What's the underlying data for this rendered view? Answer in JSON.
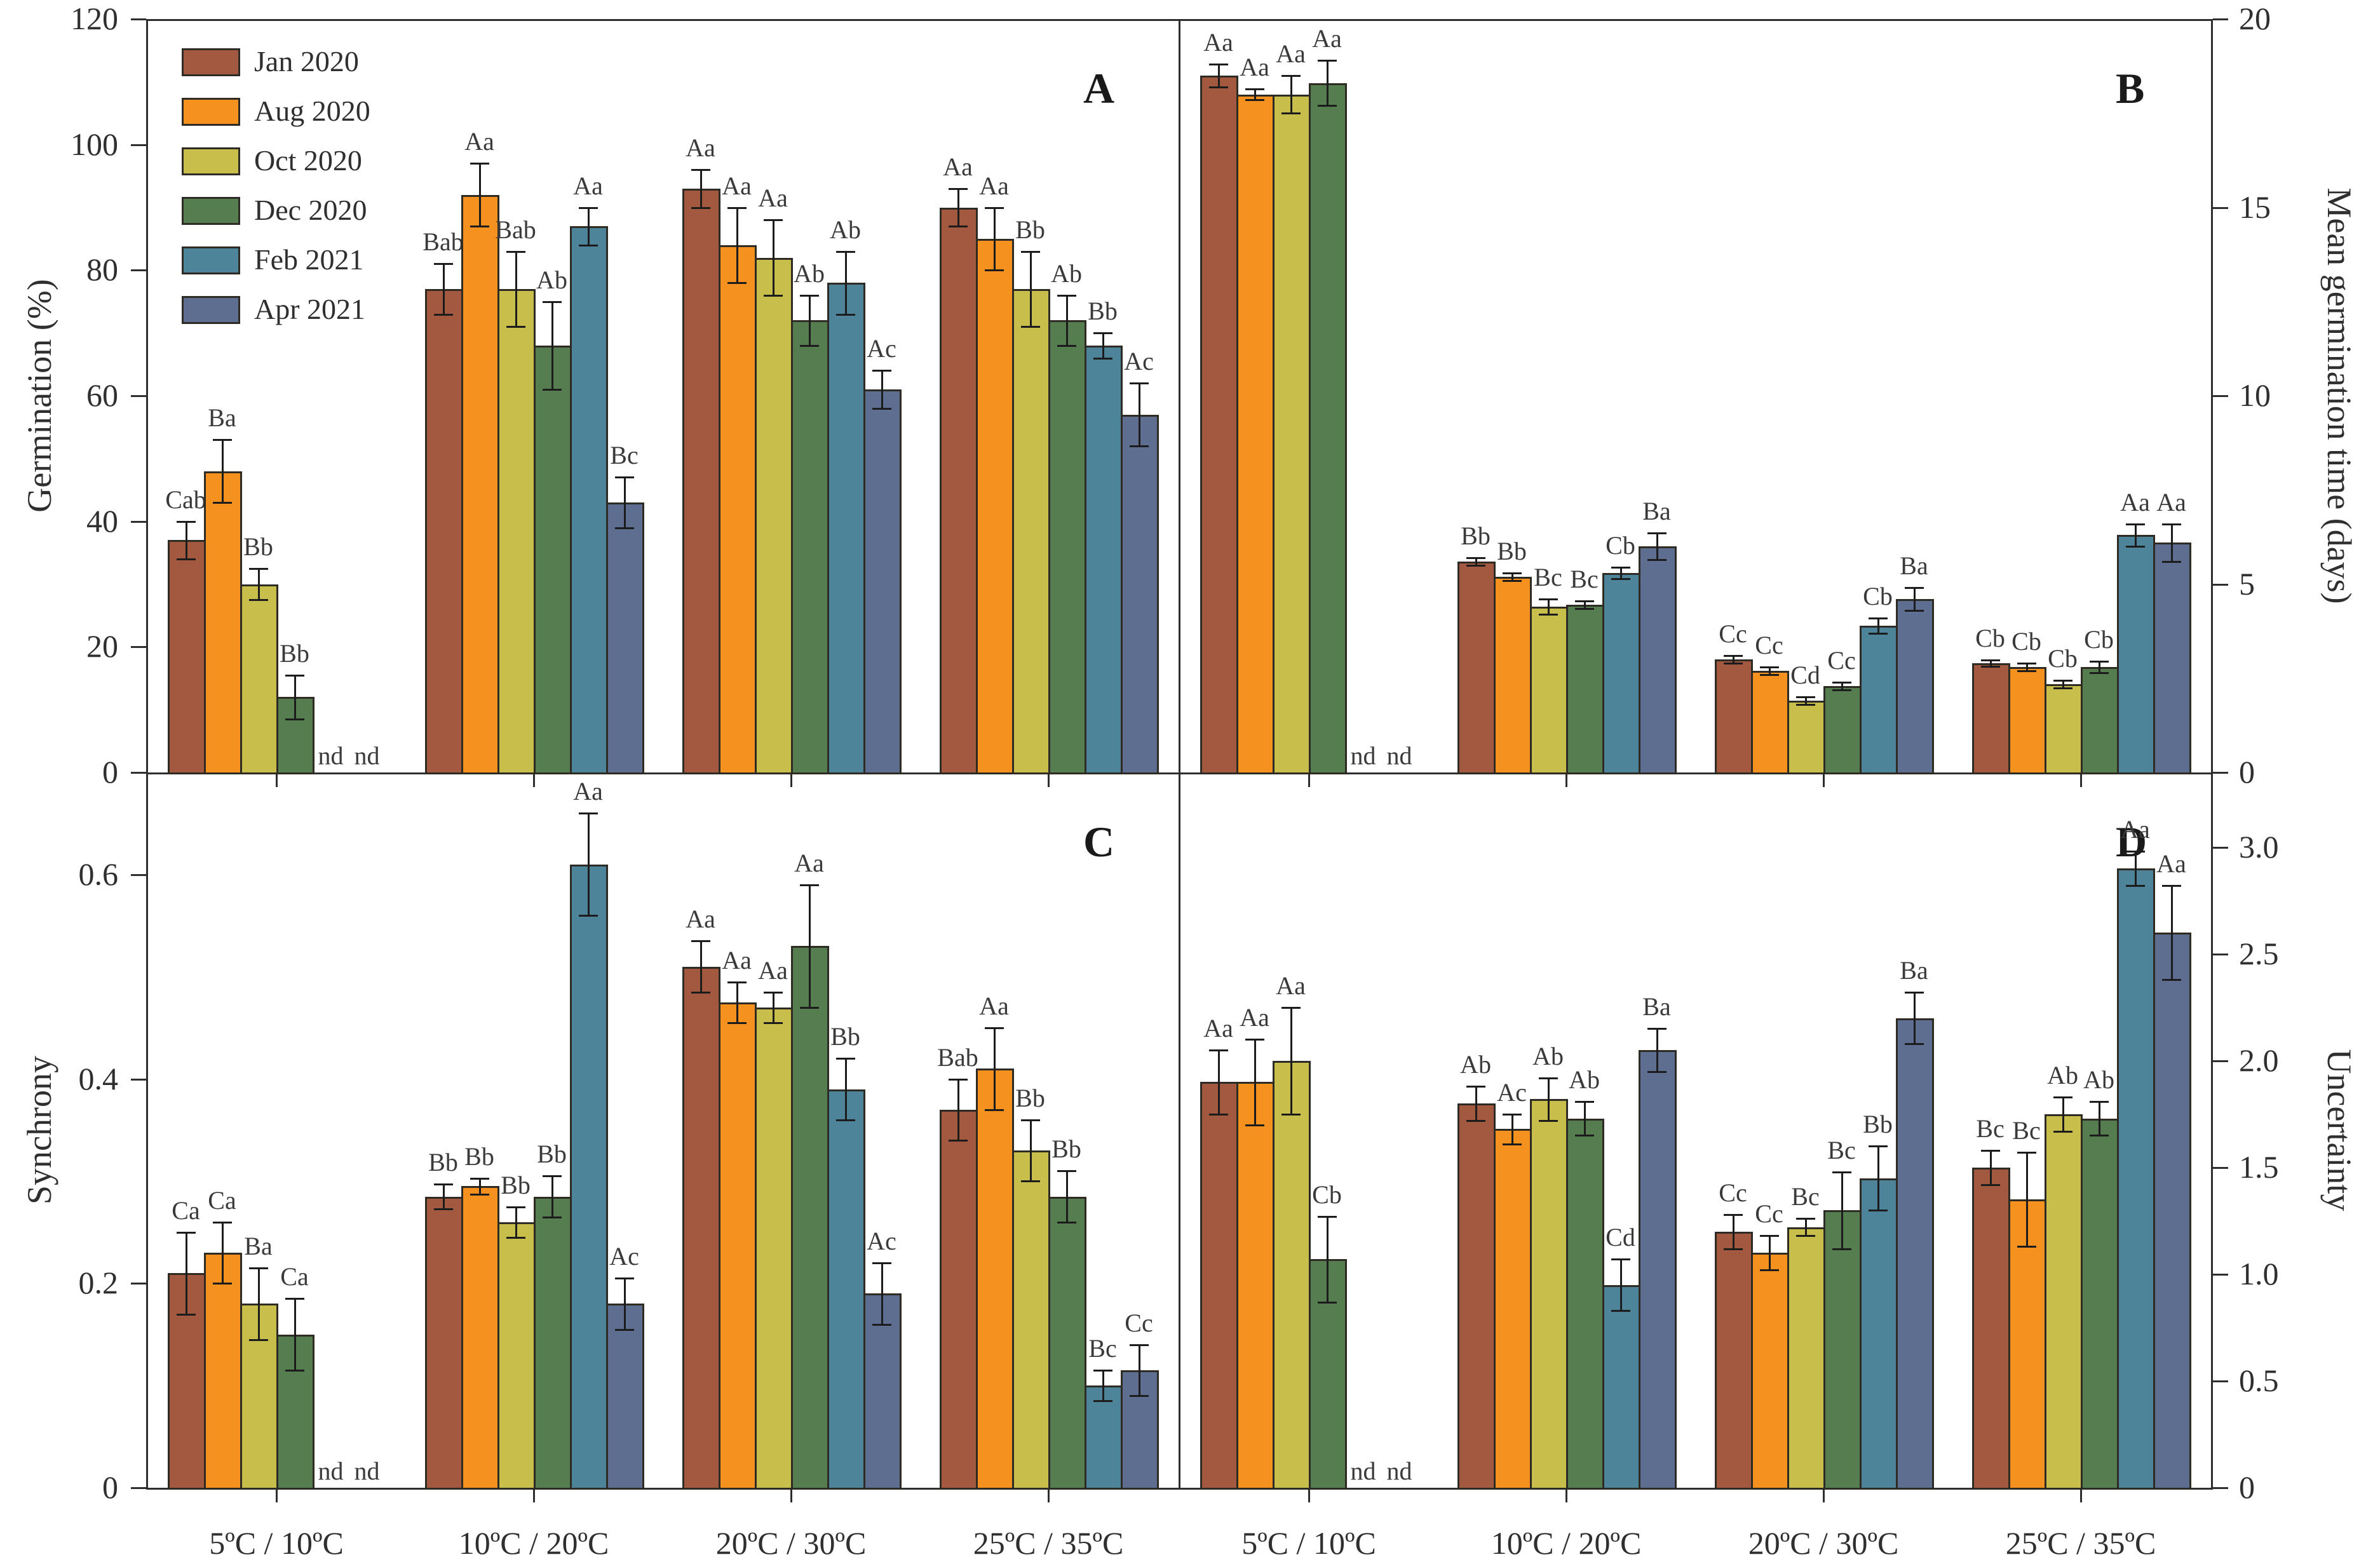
{
  "figure": {
    "not_detected_label": "nd",
    "x_categories": [
      "5ºC / 10ºC",
      "10ºC / 20ºC",
      "20ºC / 30ºC",
      "25ºC / 35ºC"
    ],
    "legend": [
      {
        "label": "Jan 2020",
        "color": "#A3593F"
      },
      {
        "label": "Aug 2020",
        "color": "#F5921F"
      },
      {
        "label": "Oct 2020",
        "color": "#C7BE4B"
      },
      {
        "label": "Dec 2020",
        "color": "#557D4F"
      },
      {
        "label": "Feb 2021",
        "color": "#4E8499"
      },
      {
        "label": "Apr 2021",
        "color": "#5D6E90"
      }
    ]
  },
  "chart_data": [
    {
      "type": "bar",
      "panel_letter": "A",
      "ylabel": "Germination (%)",
      "axis_side": "left",
      "ylim": [
        0,
        120
      ],
      "grid": false,
      "yticks": [
        {
          "value": 0,
          "label": "0"
        },
        {
          "value": 20,
          "label": "20"
        },
        {
          "value": 40,
          "label": "40"
        },
        {
          "value": 60,
          "label": "60"
        },
        {
          "value": 80,
          "label": "80"
        },
        {
          "value": 100,
          "label": "100"
        },
        {
          "value": 120,
          "label": "120"
        }
      ],
      "categories": [
        "5ºC / 10ºC",
        "10ºC / 20ºC",
        "20ºC / 30ºC",
        "25ºC / 35ºC"
      ],
      "series": [
        {
          "name": "Jan 2020",
          "values": [
            37,
            77,
            93,
            90
          ],
          "errors": [
            3,
            4,
            3,
            3
          ],
          "sig_labels": [
            "Cab",
            "Bab",
            "Aa",
            "Aa"
          ]
        },
        {
          "name": "Aug 2020",
          "values": [
            48,
            92,
            84,
            85
          ],
          "errors": [
            5,
            5,
            6,
            5
          ],
          "sig_labels": [
            "Ba",
            "Aa",
            "Aa",
            "Aa"
          ]
        },
        {
          "name": "Oct 2020",
          "values": [
            30,
            77,
            82,
            77
          ],
          "errors": [
            2.5,
            6,
            6,
            6
          ],
          "sig_labels": [
            "Bb",
            "Bab",
            "Aa",
            "Bb"
          ]
        },
        {
          "name": "Dec 2020",
          "values": [
            12,
            68,
            72,
            72
          ],
          "errors": [
            3.5,
            7,
            4,
            4
          ],
          "sig_labels": [
            "Bb",
            "Ab",
            "Ab",
            "Ab"
          ]
        },
        {
          "name": "Feb 2021",
          "values": [
            null,
            87,
            78,
            68
          ],
          "errors": [
            null,
            3,
            5,
            2
          ],
          "sig_labels": [
            "nd",
            "Aa",
            "Ab",
            "Bb"
          ]
        },
        {
          "name": "Apr 2021",
          "values": [
            null,
            43,
            61,
            57
          ],
          "errors": [
            null,
            4,
            3,
            5
          ],
          "sig_labels": [
            "nd",
            "Bc",
            "Ac",
            "Ac"
          ]
        }
      ]
    },
    {
      "type": "bar",
      "panel_letter": "B",
      "ylabel": "Mean germination time (days)",
      "axis_side": "right",
      "ylim": [
        0,
        20
      ],
      "grid": false,
      "yticks": [
        {
          "value": 0,
          "label": "0"
        },
        {
          "value": 5,
          "label": "5"
        },
        {
          "value": 10,
          "label": "10"
        },
        {
          "value": 15,
          "label": "15"
        },
        {
          "value": 20,
          "label": "20"
        }
      ],
      "categories": [
        "5ºC / 10ºC",
        "10ºC / 20ºC",
        "20ºC / 30ºC",
        "25ºC / 35ºC"
      ],
      "series": [
        {
          "name": "Jan 2020",
          "values": [
            18.5,
            5.6,
            3.0,
            2.9
          ],
          "errors": [
            0.3,
            0.1,
            0.1,
            0.08
          ],
          "sig_labels": [
            "Aa",
            "Bb",
            "Cc",
            "Cb"
          ]
        },
        {
          "name": "Aug 2020",
          "values": [
            18.0,
            5.2,
            2.7,
            2.8
          ],
          "errors": [
            0.15,
            0.1,
            0.1,
            0.1
          ],
          "sig_labels": [
            "Aa",
            "Bb",
            "Cc",
            "Cb"
          ]
        },
        {
          "name": "Oct 2020",
          "values": [
            18.0,
            4.4,
            1.9,
            2.35
          ],
          "errors": [
            0.5,
            0.2,
            0.1,
            0.1
          ],
          "sig_labels": [
            "Aa",
            "Bc",
            "Cd",
            "Cb"
          ]
        },
        {
          "name": "Dec 2020",
          "values": [
            18.3,
            4.45,
            2.3,
            2.8
          ],
          "errors": [
            0.6,
            0.1,
            0.1,
            0.15
          ],
          "sig_labels": [
            "Aa",
            "Bc",
            "Cc",
            "Cb"
          ]
        },
        {
          "name": "Feb 2021",
          "values": [
            null,
            5.3,
            3.9,
            6.3
          ],
          "errors": [
            null,
            0.15,
            0.2,
            0.3
          ],
          "sig_labels": [
            "nd",
            "Cb",
            "Cb",
            "Aa"
          ]
        },
        {
          "name": "Apr 2021",
          "values": [
            null,
            6.0,
            4.6,
            6.1
          ],
          "errors": [
            null,
            0.35,
            0.3,
            0.5
          ],
          "sig_labels": [
            "nd",
            "Ba",
            "Ba",
            "Aa"
          ]
        }
      ]
    },
    {
      "type": "bar",
      "panel_letter": "C",
      "ylabel": "Synchrony",
      "axis_side": "left",
      "ylim": [
        0,
        0.7
      ],
      "grid": false,
      "yticks": [
        {
          "value": 0,
          "label": "0"
        },
        {
          "value": 0.2,
          "label": "0.2"
        },
        {
          "value": 0.4,
          "label": "0.4"
        },
        {
          "value": 0.6,
          "label": "0.6"
        }
      ],
      "categories": [
        "5ºC / 10ºC",
        "10ºC / 20ºC",
        "20ºC / 30ºC",
        "25ºC / 35ºC"
      ],
      "series": [
        {
          "name": "Jan 2020",
          "values": [
            0.21,
            0.285,
            0.51,
            0.37
          ],
          "errors": [
            0.04,
            0.012,
            0.025,
            0.03
          ],
          "sig_labels": [
            "Ca",
            "Bb",
            "Aa",
            "Bab"
          ]
        },
        {
          "name": "Aug 2020",
          "values": [
            0.23,
            0.295,
            0.475,
            0.41
          ],
          "errors": [
            0.03,
            0.008,
            0.02,
            0.04
          ],
          "sig_labels": [
            "Ca",
            "Bb",
            "Aa",
            "Aa"
          ]
        },
        {
          "name": "Oct 2020",
          "values": [
            0.18,
            0.26,
            0.47,
            0.33
          ],
          "errors": [
            0.035,
            0.015,
            0.015,
            0.03
          ],
          "sig_labels": [
            "Ba",
            "Bb",
            "Aa",
            "Bb"
          ]
        },
        {
          "name": "Dec 2020",
          "values": [
            0.15,
            0.285,
            0.53,
            0.285
          ],
          "errors": [
            0.035,
            0.02,
            0.06,
            0.025
          ],
          "sig_labels": [
            "Ca",
            "Bb",
            "Aa",
            "Bb"
          ]
        },
        {
          "name": "Feb 2021",
          "values": [
            null,
            0.61,
            0.39,
            0.1
          ],
          "errors": [
            null,
            0.05,
            0.03,
            0.015
          ],
          "sig_labels": [
            "nd",
            "Aa",
            "Bb",
            "Bc"
          ]
        },
        {
          "name": "Apr 2021",
          "values": [
            null,
            0.18,
            0.19,
            0.115
          ],
          "errors": [
            null,
            0.025,
            0.03,
            0.025
          ],
          "sig_labels": [
            "nd",
            "Ac",
            "Ac",
            "Cc"
          ]
        }
      ]
    },
    {
      "type": "bar",
      "panel_letter": "D",
      "ylabel": "Uncertainty",
      "axis_side": "right",
      "ylim": [
        0,
        3.35
      ],
      "grid": false,
      "yticks": [
        {
          "value": 0,
          "label": "0"
        },
        {
          "value": 0.5,
          "label": "0.5"
        },
        {
          "value": 1.0,
          "label": "1.0"
        },
        {
          "value": 1.5,
          "label": "1.5"
        },
        {
          "value": 2.0,
          "label": "2.0"
        },
        {
          "value": 2.5,
          "label": "2.5"
        },
        {
          "value": 3.0,
          "label": "3.0"
        }
      ],
      "categories": [
        "5ºC / 10ºC",
        "10ºC / 20ºC",
        "20ºC / 30ºC",
        "25ºC / 35ºC"
      ],
      "series": [
        {
          "name": "Jan 2020",
          "values": [
            1.9,
            1.8,
            1.2,
            1.5
          ],
          "errors": [
            0.15,
            0.08,
            0.08,
            0.08
          ],
          "sig_labels": [
            "Aa",
            "Ab",
            "Cc",
            "Bc"
          ]
        },
        {
          "name": "Aug 2020",
          "values": [
            1.9,
            1.68,
            1.1,
            1.35
          ],
          "errors": [
            0.2,
            0.07,
            0.08,
            0.22
          ],
          "sig_labels": [
            "Aa",
            "Ac",
            "Cc",
            "Bc"
          ]
        },
        {
          "name": "Oct 2020",
          "values": [
            2.0,
            1.82,
            1.22,
            1.75
          ],
          "errors": [
            0.25,
            0.1,
            0.04,
            0.08
          ],
          "sig_labels": [
            "Aa",
            "Ab",
            "Bc",
            "Ab"
          ]
        },
        {
          "name": "Dec 2020",
          "values": [
            1.07,
            1.73,
            1.3,
            1.73
          ],
          "errors": [
            0.2,
            0.08,
            0.18,
            0.08
          ],
          "sig_labels": [
            "Cb",
            "Ab",
            "Bc",
            "Ab"
          ]
        },
        {
          "name": "Feb 2021",
          "values": [
            null,
            0.95,
            1.45,
            2.9
          ],
          "errors": [
            null,
            0.12,
            0.15,
            0.08
          ],
          "sig_labels": [
            "nd",
            "Cd",
            "Bb",
            "Aa"
          ]
        },
        {
          "name": "Apr 2021",
          "values": [
            null,
            2.05,
            2.2,
            2.6
          ],
          "errors": [
            null,
            0.1,
            0.12,
            0.22
          ],
          "sig_labels": [
            "nd",
            "Ba",
            "Ba",
            "Aa"
          ]
        }
      ]
    }
  ]
}
